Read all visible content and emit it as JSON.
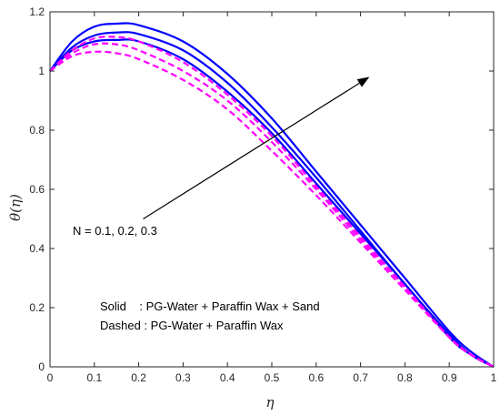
{
  "chart_data": {
    "type": "line",
    "xlabel": "η",
    "ylabel": "θ(η)",
    "xlim": [
      0,
      1
    ],
    "ylim": [
      0,
      1.2
    ],
    "xticks": [
      "0",
      "0.1",
      "0.2",
      "0.3",
      "0.4",
      "0.5",
      "0.6",
      "0.7",
      "0.8",
      "0.9",
      "1"
    ],
    "yticks": [
      "0",
      "0.2",
      "0.4",
      "0.6",
      "0.8",
      "1",
      "1.2"
    ],
    "grid": false,
    "colors": {
      "solid": "#0000ff",
      "dashed": "#ff00ff",
      "axis": "#262626",
      "arrow": "#000000"
    },
    "series": [
      {
        "group": "solid",
        "style": "solid",
        "x": [
          0,
          0.05,
          0.1,
          0.15,
          0.2,
          0.3,
          0.4,
          0.5,
          0.6,
          0.7,
          0.8,
          0.9,
          0.95,
          1
        ],
        "y": [
          1.0,
          1.07,
          1.1,
          1.105,
          1.1,
          1.04,
          0.93,
          0.79,
          0.62,
          0.45,
          0.28,
          0.1,
          0.04,
          0
        ]
      },
      {
        "group": "solid",
        "style": "solid",
        "x": [
          0,
          0.05,
          0.1,
          0.15,
          0.2,
          0.3,
          0.4,
          0.5,
          0.6,
          0.7,
          0.8,
          0.9,
          0.95,
          1
        ],
        "y": [
          1.0,
          1.08,
          1.12,
          1.13,
          1.125,
          1.07,
          0.96,
          0.81,
          0.64,
          0.46,
          0.28,
          0.11,
          0.04,
          0
        ]
      },
      {
        "group": "solid",
        "style": "solid",
        "x": [
          0,
          0.05,
          0.1,
          0.15,
          0.2,
          0.3,
          0.4,
          0.5,
          0.6,
          0.7,
          0.8,
          0.9,
          0.95,
          1
        ],
        "y": [
          1.0,
          1.1,
          1.15,
          1.16,
          1.155,
          1.1,
          0.99,
          0.84,
          0.66,
          0.48,
          0.3,
          0.12,
          0.05,
          0
        ]
      },
      {
        "group": "dashed",
        "style": "dashed",
        "x": [
          0,
          0.05,
          0.1,
          0.15,
          0.2,
          0.3,
          0.4,
          0.5,
          0.6,
          0.7,
          0.8,
          0.9,
          0.95,
          1
        ],
        "y": [
          1.0,
          1.05,
          1.065,
          1.06,
          1.04,
          0.97,
          0.87,
          0.73,
          0.58,
          0.42,
          0.26,
          0.1,
          0.04,
          0
        ]
      },
      {
        "group": "dashed",
        "style": "dashed",
        "x": [
          0,
          0.05,
          0.1,
          0.15,
          0.2,
          0.3,
          0.4,
          0.5,
          0.6,
          0.7,
          0.8,
          0.9,
          0.95,
          1
        ],
        "y": [
          1.0,
          1.06,
          1.09,
          1.09,
          1.07,
          1.0,
          0.9,
          0.76,
          0.6,
          0.43,
          0.27,
          0.1,
          0.04,
          0
        ]
      },
      {
        "group": "dashed",
        "style": "dashed",
        "x": [
          0,
          0.05,
          0.1,
          0.15,
          0.2,
          0.3,
          0.4,
          0.5,
          0.6,
          0.7,
          0.8,
          0.9,
          0.95,
          1
        ],
        "y": [
          1.0,
          1.07,
          1.11,
          1.115,
          1.1,
          1.03,
          0.92,
          0.78,
          0.61,
          0.44,
          0.27,
          0.1,
          0.04,
          0
        ]
      }
    ],
    "annotations": [
      {
        "text": "N = 0.1, 0.2, 0.3",
        "arrow_from": [
          0.21,
          0.5
        ],
        "arrow_to": [
          0.72,
          0.98
        ]
      }
    ],
    "legend_text": [
      "Solid    : PG-Water + Paraffin Wax + Sand",
      "Dashed : PG-Water + Paraffin Wax"
    ]
  }
}
